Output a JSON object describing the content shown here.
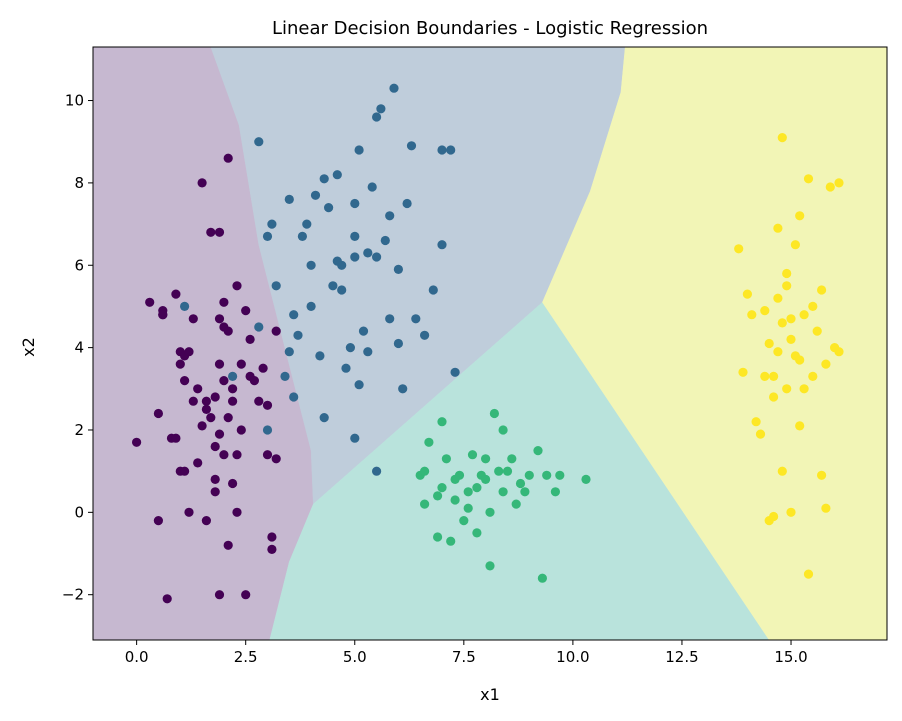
{
  "chart_data": {
    "type": "scatter",
    "title": "Linear Decision Boundaries - Logistic Regression",
    "xlabel": "x1",
    "ylabel": "x2",
    "xlim": [
      -1.0,
      17.2
    ],
    "ylim": [
      -3.1,
      11.3
    ],
    "grid": false,
    "x_ticks": [
      0.0,
      2.5,
      5.0,
      7.5,
      10.0,
      12.5,
      15.0
    ],
    "x_tick_labels": [
      "0.0",
      "2.5",
      "5.0",
      "7.5",
      "10.0",
      "12.5",
      "15.0"
    ],
    "y_ticks": [
      -2,
      0,
      2,
      4,
      6,
      8,
      10
    ],
    "y_tick_labels": [
      "−2",
      "0",
      "2",
      "4",
      "6",
      "8",
      "10"
    ],
    "region_colors": [
      "#c6b8d0",
      "#bfcddb",
      "#b9e3dc",
      "#f2f5b6"
    ],
    "regions": [
      [
        [
          -1.0,
          -3.1
        ],
        [
          3.05,
          -3.1
        ],
        [
          3.5,
          -1.2
        ],
        [
          4.05,
          0.2
        ],
        [
          4.0,
          1.5
        ],
        [
          3.35,
          4.2
        ],
        [
          2.8,
          6.5
        ],
        [
          2.35,
          9.4
        ],
        [
          1.7,
          11.3
        ],
        [
          -1.0,
          11.3
        ]
      ],
      [
        [
          1.7,
          11.3
        ],
        [
          2.35,
          9.4
        ],
        [
          2.8,
          6.5
        ],
        [
          3.35,
          4.2
        ],
        [
          4.0,
          1.5
        ],
        [
          4.05,
          0.2
        ],
        [
          9.3,
          5.1
        ],
        [
          10.4,
          7.8
        ],
        [
          11.1,
          10.2
        ],
        [
          11.2,
          11.3
        ]
      ],
      [
        [
          3.05,
          -3.1
        ],
        [
          3.5,
          -1.2
        ],
        [
          4.05,
          0.2
        ],
        [
          9.3,
          5.1
        ],
        [
          14.5,
          -3.1
        ]
      ],
      [
        [
          11.2,
          11.3
        ],
        [
          11.1,
          10.2
        ],
        [
          10.4,
          7.8
        ],
        [
          9.3,
          5.1
        ],
        [
          14.5,
          -3.1
        ],
        [
          17.2,
          -3.1
        ],
        [
          17.2,
          11.3
        ]
      ]
    ],
    "series": [
      {
        "color": "#440154",
        "points": [
          [
            0.0,
            1.7
          ],
          [
            0.3,
            5.1
          ],
          [
            0.5,
            2.4
          ],
          [
            0.5,
            -0.2
          ],
          [
            0.6,
            4.8
          ],
          [
            0.6,
            4.9
          ],
          [
            0.7,
            -2.1
          ],
          [
            0.8,
            1.8
          ],
          [
            0.9,
            5.3
          ],
          [
            0.9,
            1.8
          ],
          [
            1.0,
            3.9
          ],
          [
            1.0,
            3.6
          ],
          [
            1.0,
            1.0
          ],
          [
            1.1,
            3.2
          ],
          [
            1.1,
            1.0
          ],
          [
            1.1,
            3.8
          ],
          [
            1.2,
            3.9
          ],
          [
            1.2,
            -0.0
          ],
          [
            1.3,
            2.7
          ],
          [
            1.3,
            4.7
          ],
          [
            1.4,
            3.0
          ],
          [
            1.4,
            1.2
          ],
          [
            1.5,
            8.0
          ],
          [
            1.5,
            2.1
          ],
          [
            1.6,
            2.7
          ],
          [
            1.6,
            -0.2
          ],
          [
            1.6,
            2.5
          ],
          [
            1.7,
            2.3
          ],
          [
            1.7,
            6.8
          ],
          [
            1.8,
            2.8
          ],
          [
            1.8,
            1.6
          ],
          [
            1.8,
            0.8
          ],
          [
            1.8,
            0.5
          ],
          [
            1.9,
            6.8
          ],
          [
            1.9,
            4.7
          ],
          [
            1.9,
            3.6
          ],
          [
            1.9,
            1.9
          ],
          [
            1.9,
            -2.0
          ],
          [
            2.0,
            3.2
          ],
          [
            2.0,
            5.1
          ],
          [
            2.0,
            4.5
          ],
          [
            2.0,
            1.4
          ],
          [
            2.1,
            4.4
          ],
          [
            2.1,
            8.6
          ],
          [
            2.1,
            2.3
          ],
          [
            2.1,
            -0.8
          ],
          [
            2.2,
            3.0
          ],
          [
            2.2,
            0.7
          ],
          [
            2.2,
            2.7
          ],
          [
            2.3,
            1.4
          ],
          [
            2.3,
            5.5
          ],
          [
            2.3,
            0.0
          ],
          [
            2.4,
            3.6
          ],
          [
            2.4,
            2.0
          ],
          [
            2.5,
            4.9
          ],
          [
            2.5,
            -2.0
          ],
          [
            2.6,
            3.3
          ],
          [
            2.6,
            4.2
          ],
          [
            2.7,
            3.2
          ],
          [
            2.8,
            2.7
          ],
          [
            2.9,
            3.5
          ],
          [
            3.0,
            1.4
          ],
          [
            3.0,
            2.6
          ],
          [
            3.1,
            -0.9
          ],
          [
            3.1,
            -0.6
          ],
          [
            3.2,
            1.3
          ],
          [
            3.2,
            4.4
          ],
          [
            0.6,
            4.8
          ]
        ]
      },
      {
        "color": "#31688e",
        "points": [
          [
            1.1,
            5.0
          ],
          [
            2.2,
            3.3
          ],
          [
            2.8,
            9.0
          ],
          [
            2.8,
            4.5
          ],
          [
            3.0,
            6.7
          ],
          [
            3.1,
            7.0
          ],
          [
            3.0,
            2.0
          ],
          [
            3.2,
            5.5
          ],
          [
            3.4,
            3.3
          ],
          [
            3.5,
            3.9
          ],
          [
            3.5,
            7.6
          ],
          [
            3.6,
            2.8
          ],
          [
            3.6,
            4.8
          ],
          [
            3.7,
            4.3
          ],
          [
            3.8,
            6.7
          ],
          [
            3.9,
            7.0
          ],
          [
            4.0,
            5.0
          ],
          [
            4.1,
            7.7
          ],
          [
            4.2,
            3.8
          ],
          [
            4.3,
            8.1
          ],
          [
            4.3,
            2.3
          ],
          [
            4.5,
            5.5
          ],
          [
            4.6,
            8.2
          ],
          [
            4.7,
            6.0
          ],
          [
            4.8,
            3.5
          ],
          [
            4.9,
            4.0
          ],
          [
            5.0,
            7.5
          ],
          [
            5.0,
            1.8
          ],
          [
            5.0,
            6.7
          ],
          [
            5.1,
            8.8
          ],
          [
            5.2,
            4.4
          ],
          [
            5.3,
            6.3
          ],
          [
            5.4,
            7.9
          ],
          [
            5.5,
            6.2
          ],
          [
            5.6,
            9.8
          ],
          [
            5.7,
            6.6
          ],
          [
            5.8,
            4.7
          ],
          [
            6.0,
            5.9
          ],
          [
            6.1,
            3.0
          ],
          [
            6.2,
            7.5
          ],
          [
            6.3,
            8.9
          ],
          [
            6.4,
            4.7
          ],
          [
            6.6,
            4.3
          ],
          [
            6.8,
            5.4
          ],
          [
            7.0,
            8.8
          ],
          [
            7.2,
            8.8
          ],
          [
            7.3,
            3.4
          ],
          [
            7.0,
            6.5
          ],
          [
            5.9,
            10.3
          ],
          [
            5.5,
            1.0
          ],
          [
            4.6,
            6.1
          ],
          [
            5.0,
            6.2
          ],
          [
            5.3,
            3.9
          ],
          [
            6.0,
            4.1
          ],
          [
            4.0,
            6.0
          ],
          [
            5.8,
            7.2
          ],
          [
            5.5,
            9.6
          ],
          [
            5.1,
            3.1
          ],
          [
            4.7,
            5.4
          ],
          [
            4.4,
            7.4
          ]
        ]
      },
      {
        "color": "#35b779",
        "points": [
          [
            6.5,
            0.9
          ],
          [
            6.6,
            1.0
          ],
          [
            6.7,
            1.7
          ],
          [
            6.9,
            0.4
          ],
          [
            6.9,
            -0.6
          ],
          [
            7.0,
            0.6
          ],
          [
            7.1,
            1.3
          ],
          [
            7.2,
            -0.7
          ],
          [
            7.3,
            0.3
          ],
          [
            7.4,
            0.9
          ],
          [
            7.5,
            -0.2
          ],
          [
            7.6,
            0.1
          ],
          [
            7.7,
            1.4
          ],
          [
            7.8,
            0.6
          ],
          [
            7.8,
            -0.5
          ],
          [
            7.9,
            0.9
          ],
          [
            8.0,
            0.8
          ],
          [
            8.0,
            1.3
          ],
          [
            8.1,
            -1.3
          ],
          [
            8.1,
            0.0
          ],
          [
            8.2,
            2.4
          ],
          [
            8.3,
            1.0
          ],
          [
            8.4,
            0.5
          ],
          [
            8.5,
            1.0
          ],
          [
            8.6,
            1.3
          ],
          [
            8.7,
            0.2
          ],
          [
            8.8,
            0.7
          ],
          [
            8.9,
            0.5
          ],
          [
            9.0,
            0.9
          ],
          [
            9.2,
            1.5
          ],
          [
            9.4,
            0.9
          ],
          [
            9.6,
            0.5
          ],
          [
            9.7,
            0.9
          ],
          [
            10.3,
            0.8
          ],
          [
            9.3,
            -1.6
          ],
          [
            7.3,
            0.8
          ],
          [
            8.4,
            2.0
          ],
          [
            7.0,
            2.2
          ],
          [
            6.6,
            0.2
          ],
          [
            7.6,
            0.5
          ]
        ]
      },
      {
        "color": "#fde725",
        "points": [
          [
            13.8,
            6.4
          ],
          [
            14.0,
            5.3
          ],
          [
            14.1,
            4.8
          ],
          [
            14.2,
            2.2
          ],
          [
            14.3,
            1.9
          ],
          [
            14.4,
            4.9
          ],
          [
            14.5,
            4.1
          ],
          [
            14.5,
            -0.2
          ],
          [
            14.6,
            3.3
          ],
          [
            14.6,
            2.8
          ],
          [
            14.7,
            6.9
          ],
          [
            14.7,
            5.2
          ],
          [
            14.7,
            3.9
          ],
          [
            14.8,
            1.0
          ],
          [
            14.8,
            4.6
          ],
          [
            14.8,
            9.1
          ],
          [
            14.9,
            3.0
          ],
          [
            14.9,
            5.5
          ],
          [
            15.0,
            4.2
          ],
          [
            15.0,
            0.0
          ],
          [
            15.1,
            6.5
          ],
          [
            15.1,
            3.8
          ],
          [
            15.2,
            2.1
          ],
          [
            15.2,
            7.2
          ],
          [
            15.3,
            4.8
          ],
          [
            15.3,
            3.0
          ],
          [
            15.4,
            8.1
          ],
          [
            15.4,
            -1.5
          ],
          [
            15.5,
            5.0
          ],
          [
            15.5,
            3.3
          ],
          [
            15.6,
            4.4
          ],
          [
            15.7,
            5.4
          ],
          [
            15.7,
            0.9
          ],
          [
            15.8,
            3.6
          ],
          [
            15.9,
            7.9
          ],
          [
            16.0,
            4.0
          ],
          [
            16.1,
            8.0
          ],
          [
            16.1,
            3.9
          ],
          [
            15.8,
            0.1
          ],
          [
            14.9,
            5.8
          ],
          [
            13.9,
            3.4
          ],
          [
            15.0,
            4.7
          ],
          [
            14.6,
            -0.1
          ],
          [
            15.2,
            3.7
          ],
          [
            14.4,
            3.3
          ]
        ]
      }
    ]
  }
}
